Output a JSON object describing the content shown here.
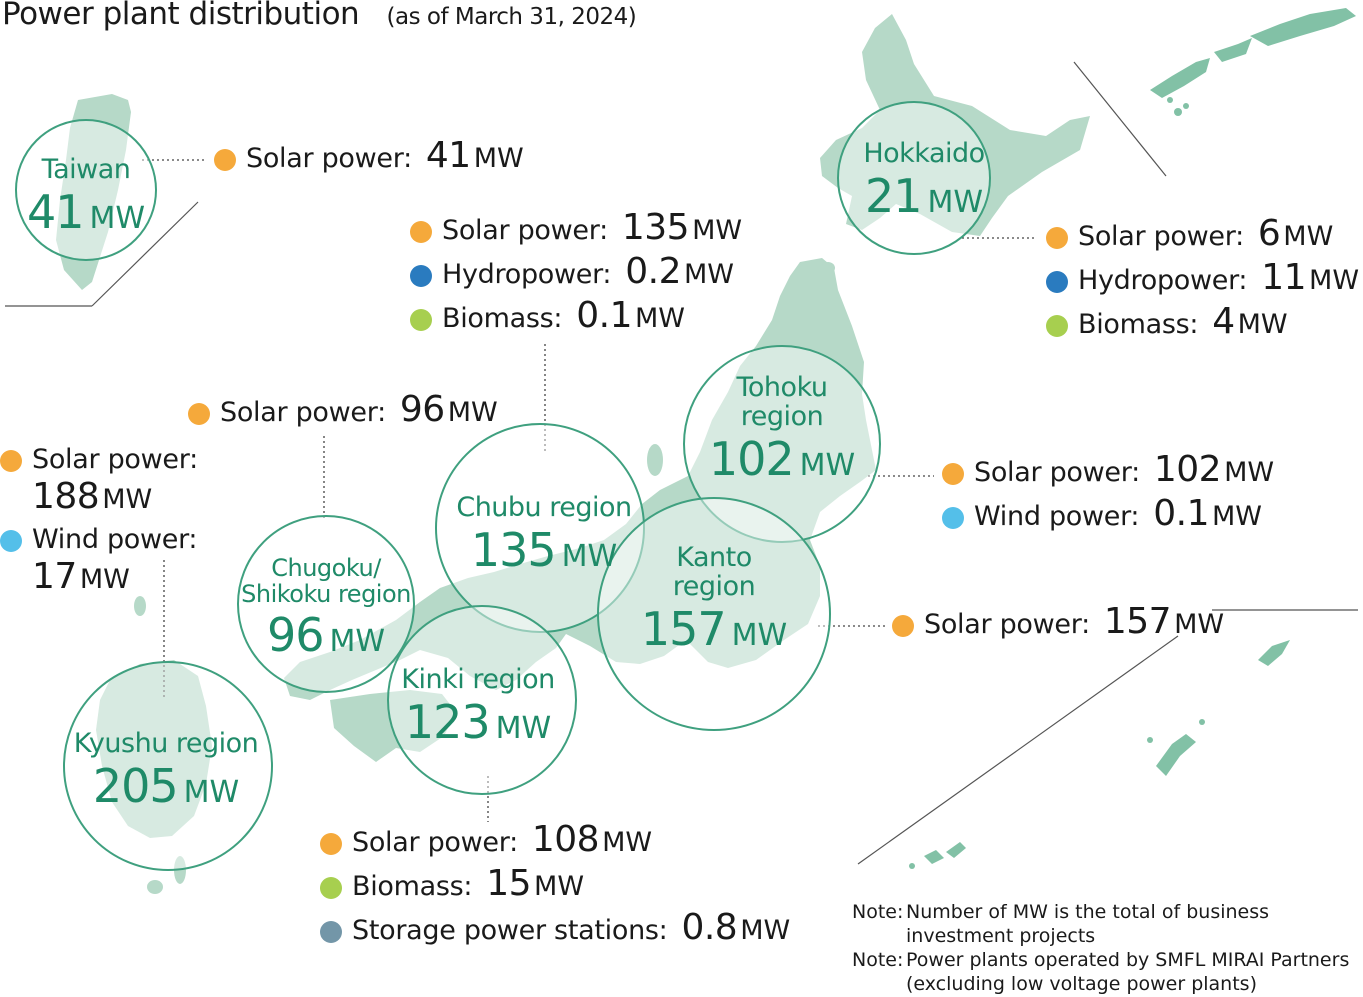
{
  "title": "Power plant distribution",
  "subtitle": "(as of March 31, 2024)",
  "colors": {
    "land": "#b6d9c8",
    "land_dark": "#82c1a6",
    "circle_stroke": "#3fa07f",
    "circle_fill": "rgba(255,255,255,0.45)",
    "region_text": "#1f8a68",
    "solar": "#f5a93b",
    "hydro": "#2a7bbf",
    "biomass": "#a7cf4f",
    "wind": "#54bfe9",
    "storage": "#7396a8"
  },
  "unit": "MW",
  "regions": {
    "taiwan": {
      "name": [
        "Taiwan"
      ],
      "value": "41",
      "unit": "MW"
    },
    "hokkaido": {
      "name": [
        "Hokkaido"
      ],
      "value": "21",
      "unit": "MW"
    },
    "tohoku": {
      "name": [
        "Tohoku",
        "region"
      ],
      "value": "102",
      "unit": "MW"
    },
    "chubu": {
      "name": [
        "Chubu region"
      ],
      "value": "135",
      "unit": "MW"
    },
    "kanto": {
      "name": [
        "Kanto",
        "region"
      ],
      "value": "157",
      "unit": "MW"
    },
    "chugoku": {
      "name": [
        "Chugoku/",
        "Shikoku region"
      ],
      "value": "96",
      "unit": "MW"
    },
    "kinki": {
      "name": [
        "Kinki region"
      ],
      "value": "123",
      "unit": "MW"
    },
    "kyushu": {
      "name": [
        "Kyushu region"
      ],
      "value": "205",
      "unit": "MW"
    }
  },
  "breakdowns": {
    "taiwan": [
      {
        "type": "solar",
        "label": "Solar power:",
        "value": "41",
        "unit": "MW"
      }
    ],
    "hokkaido": [
      {
        "type": "solar",
        "label": "Solar power:",
        "value": "6",
        "unit": "MW"
      },
      {
        "type": "hydro",
        "label": "Hydropower:",
        "value": "11",
        "unit": "MW"
      },
      {
        "type": "biomass",
        "label": "Biomass:",
        "value": "4",
        "unit": "MW"
      }
    ],
    "chubu": [
      {
        "type": "solar",
        "label": "Solar power:",
        "value": "135",
        "unit": "MW"
      },
      {
        "type": "hydro",
        "label": "Hydropower:",
        "value": "0.2",
        "unit": "MW"
      },
      {
        "type": "biomass",
        "label": "Biomass:",
        "value": "0.1",
        "unit": "MW"
      }
    ],
    "tohoku": [
      {
        "type": "solar",
        "label": "Solar power:",
        "value": "102",
        "unit": "MW"
      },
      {
        "type": "wind",
        "label": "Wind power:",
        "value": "0.1",
        "unit": "MW"
      }
    ],
    "chugoku": [
      {
        "type": "solar",
        "label": "Solar power:",
        "value": "96",
        "unit": "MW"
      }
    ],
    "kyushu": [
      {
        "type": "solar",
        "label": "Solar power:",
        "value": "188",
        "unit": "MW"
      },
      {
        "type": "wind",
        "label": "Wind power:",
        "value": "17",
        "unit": "MW"
      }
    ],
    "kanto": [
      {
        "type": "solar",
        "label": "Solar power:",
        "value": "157",
        "unit": "MW"
      }
    ],
    "kinki": [
      {
        "type": "solar",
        "label": "Solar power:",
        "value": "108",
        "unit": "MW"
      },
      {
        "type": "biomass",
        "label": "Biomass:",
        "value": "15",
        "unit": "MW"
      },
      {
        "type": "storage",
        "label": "Storage power stations:",
        "value": "0.8",
        "unit": "MW"
      }
    ]
  },
  "notes": [
    {
      "prefix": "Note:",
      "text": "Number of MW is the total of business investment projects"
    },
    {
      "prefix": "Note:",
      "text": "Power plants operated by SMFL MIRAI Partners (excluding low voltage power plants)"
    }
  ]
}
